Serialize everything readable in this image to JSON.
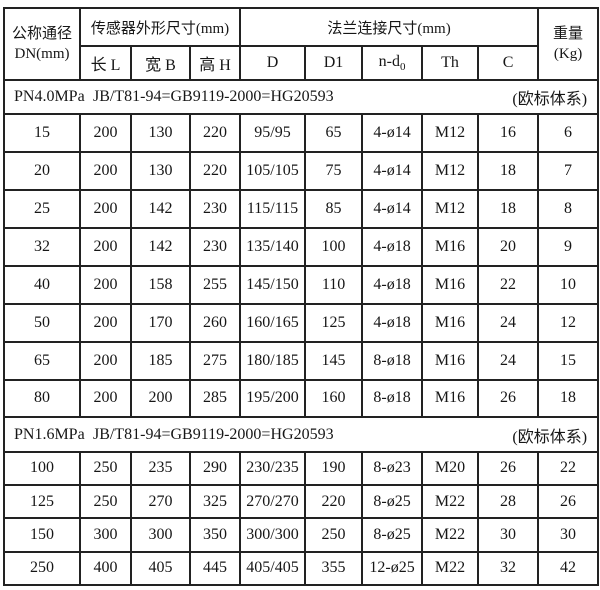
{
  "colors": {
    "background": "#ffffff",
    "border": "#222222",
    "text": "#161616"
  },
  "table": {
    "header": {
      "dn": {
        "line1": "公称通径",
        "line2": "DN(mm)"
      },
      "sensor_group": "传感器外形尺寸(mm)",
      "flange_group": "法兰连接尺寸(mm)",
      "weight": {
        "line1": "重量",
        "line2": "(Kg)"
      },
      "sub_cols": {
        "l": "长 L",
        "b": "宽 B",
        "h": "高 H",
        "d": "D",
        "d1": "D1",
        "nd_base": "n-d",
        "nd_sub": "0",
        "th": "Th",
        "c": "C"
      }
    },
    "column_keys": [
      "dn",
      "length-l",
      "width-b",
      "height-h",
      "d",
      "d1",
      "n-d0",
      "th",
      "c",
      "weight"
    ],
    "sections": [
      {
        "pressure": "PN4.0MPa",
        "standard": "JB/T81-94=GB9119-2000=HG20593",
        "note": "(欧标体系)",
        "rows": [
          [
            "15",
            "200",
            "130",
            "220",
            "95/95",
            "65",
            "4-ø14",
            "M12",
            "16",
            "6"
          ],
          [
            "20",
            "200",
            "130",
            "220",
            "105/105",
            "75",
            "4-ø14",
            "M12",
            "18",
            "7"
          ],
          [
            "25",
            "200",
            "142",
            "230",
            "115/115",
            "85",
            "4-ø14",
            "M12",
            "18",
            "8"
          ],
          [
            "32",
            "200",
            "142",
            "230",
            "135/140",
            "100",
            "4-ø18",
            "M16",
            "20",
            "9"
          ],
          [
            "40",
            "200",
            "158",
            "255",
            "145/150",
            "110",
            "4-ø18",
            "M16",
            "22",
            "10"
          ],
          [
            "50",
            "200",
            "170",
            "260",
            "160/165",
            "125",
            "4-ø18",
            "M16",
            "24",
            "12"
          ],
          [
            "65",
            "200",
            "185",
            "275",
            "180/185",
            "145",
            "8-ø18",
            "M16",
            "24",
            "15"
          ],
          [
            "80",
            "200",
            "200",
            "285",
            "195/200",
            "160",
            "8-ø18",
            "M16",
            "26",
            "18"
          ]
        ]
      },
      {
        "pressure": "PN1.6MPa",
        "standard": "JB/T81-94=GB9119-2000=HG20593",
        "note": "(欧标体系)",
        "rows": [
          [
            "100",
            "250",
            "235",
            "290",
            "230/235",
            "190",
            "8-ø23",
            "M20",
            "26",
            "22"
          ],
          [
            "125",
            "250",
            "270",
            "325",
            "270/270",
            "220",
            "8-ø25",
            "M22",
            "28",
            "26"
          ],
          [
            "150",
            "300",
            "300",
            "350",
            "300/300",
            "250",
            "8-ø25",
            "M22",
            "30",
            "30"
          ],
          [
            "250",
            "400",
            "405",
            "445",
            "405/405",
            "355",
            "12-ø25",
            "M22",
            "32",
            "42"
          ]
        ]
      }
    ]
  }
}
